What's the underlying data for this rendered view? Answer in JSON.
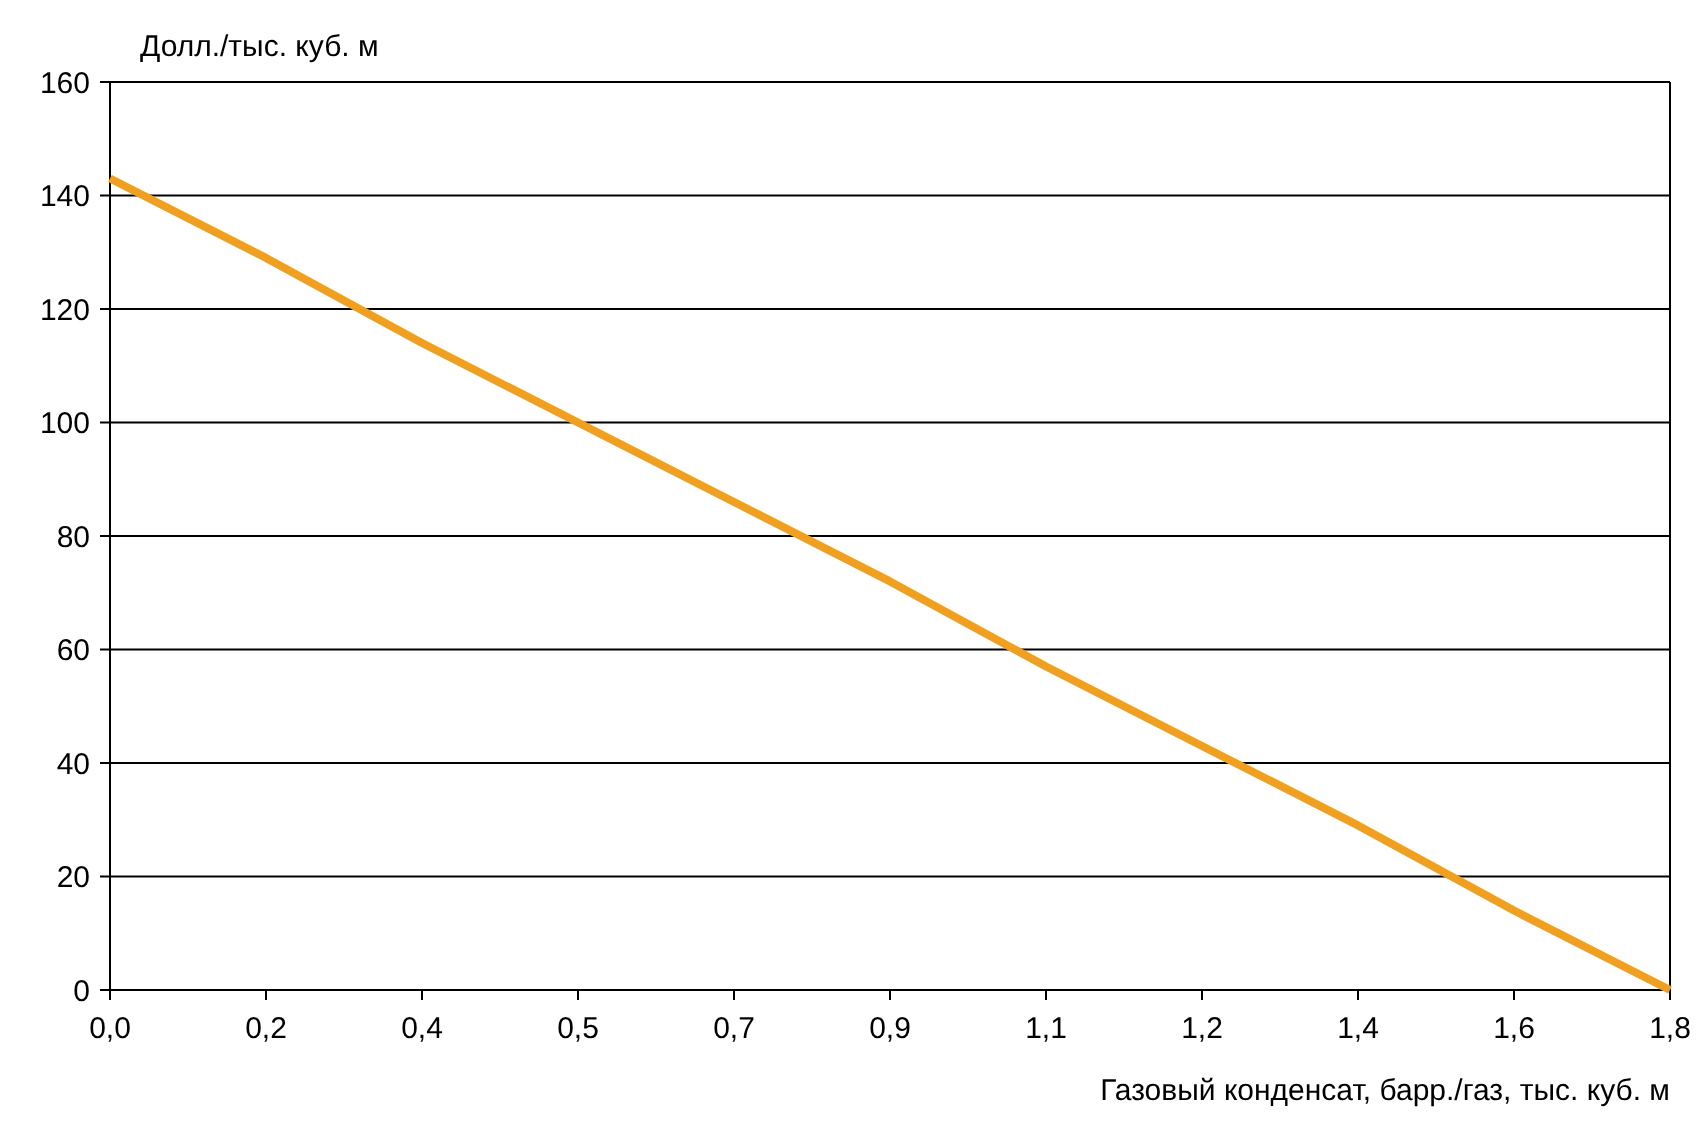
{
  "chart_data": {
    "type": "line",
    "ylabel": "Долл./тыс. куб. м",
    "xlabel": "Газовый конденсат, барр./газ, тыс. куб. м",
    "categories": [
      "0,0",
      "0,2",
      "0,4",
      "0,5",
      "0,7",
      "0,9",
      "1,1",
      "1,2",
      "1,4",
      "1,6",
      "1,8"
    ],
    "series": [
      {
        "color": "#f0a01e",
        "values": [
          143,
          129,
          114,
          100,
          86,
          72,
          57,
          43,
          29,
          14,
          0
        ]
      }
    ],
    "ylim": [
      0,
      160
    ],
    "yticks": [
      0,
      20,
      40,
      60,
      80,
      100,
      120,
      140,
      160
    ],
    "grid": "y",
    "marker": "none",
    "line_style": "solid"
  }
}
